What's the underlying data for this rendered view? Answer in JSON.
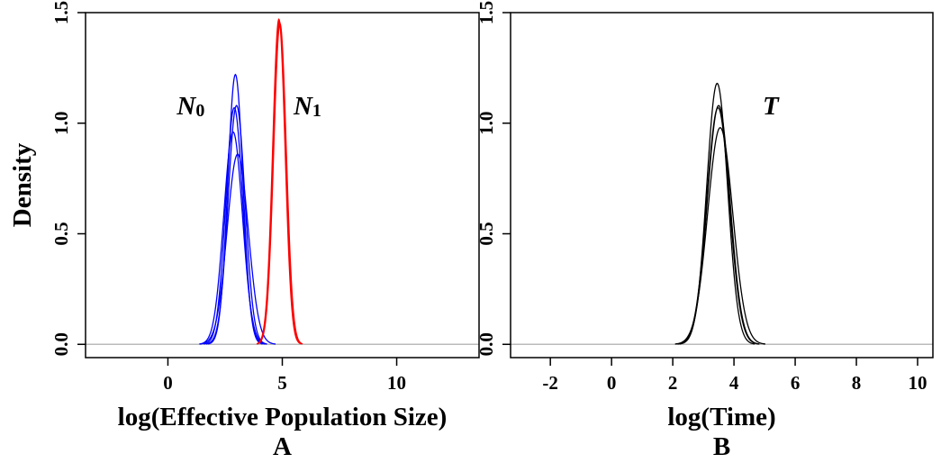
{
  "chart_data": [
    {
      "type": "line",
      "panel_label": "A",
      "xlabel": "log(Effective Population Size)",
      "ylabel": "Density",
      "xlim": [
        -3.6,
        13.6
      ],
      "ylim": [
        -0.06,
        1.5
      ],
      "xticks": [
        0,
        5,
        10
      ],
      "yticks": [
        0.0,
        0.5,
        1.0,
        1.5
      ],
      "ytick_labels": [
        "0.0",
        "0.5",
        "1.0",
        "1.5"
      ],
      "grid": false,
      "baseline": 0,
      "baseline_color": "#bbbbbb",
      "annotations": [
        {
          "label": "N",
          "sub": "0",
          "x": 1.0,
          "y": 1.08
        },
        {
          "label": "N",
          "sub": "1",
          "x": 6.1,
          "y": 1.08
        }
      ],
      "series": [
        {
          "color": "#0000ff",
          "peak_x": 2.95,
          "peak_y": 1.22,
          "sd": 0.33
        },
        {
          "color": "#0000ff",
          "peak_x": 3.0,
          "peak_y": 1.08,
          "sd": 0.37
        },
        {
          "color": "#0000ff",
          "peak_x": 2.85,
          "peak_y": 0.96,
          "sd": 0.41
        },
        {
          "color": "#0000ff",
          "peak_x": 3.05,
          "peak_y": 0.86,
          "sd": 0.46
        },
        {
          "color": "#0000ff",
          "peak_x": 2.9,
          "peak_y": 1.07,
          "sd": 0.37
        },
        {
          "color": "#ff0000",
          "peak_x": 4.85,
          "peak_y": 1.47,
          "sd": 0.27
        },
        {
          "color": "#ff0000",
          "peak_x": 4.9,
          "peak_y": 1.45,
          "sd": 0.275
        },
        {
          "color": "#ff0000",
          "peak_x": 4.87,
          "peak_y": 1.46,
          "sd": 0.272
        }
      ]
    },
    {
      "type": "line",
      "panel_label": "B",
      "xlabel": "log(Time)",
      "ylabel": "",
      "xlim": [
        -3.3,
        10.5
      ],
      "ylim": [
        -0.06,
        1.5
      ],
      "xticks": [
        -2,
        0,
        2,
        4,
        6,
        8,
        10
      ],
      "yticks": [
        0.0,
        0.5,
        1.0,
        1.5
      ],
      "ytick_labels": [
        "0.0",
        "0.5",
        "1.0",
        "1.5"
      ],
      "grid": false,
      "baseline": 0,
      "baseline_color": "#bbbbbb",
      "annotations": [
        {
          "label": "T",
          "sub": "",
          "x": 5.2,
          "y": 1.08
        }
      ],
      "series": [
        {
          "color": "#000000",
          "peak_x": 3.45,
          "peak_y": 1.18,
          "sd": 0.34
        },
        {
          "color": "#000000",
          "peak_x": 3.5,
          "peak_y": 1.08,
          "sd": 0.37
        },
        {
          "color": "#000000",
          "peak_x": 3.55,
          "peak_y": 0.98,
          "sd": 0.41
        },
        {
          "color": "#000000",
          "peak_x": 3.48,
          "peak_y": 1.07,
          "sd": 0.37
        }
      ]
    }
  ]
}
